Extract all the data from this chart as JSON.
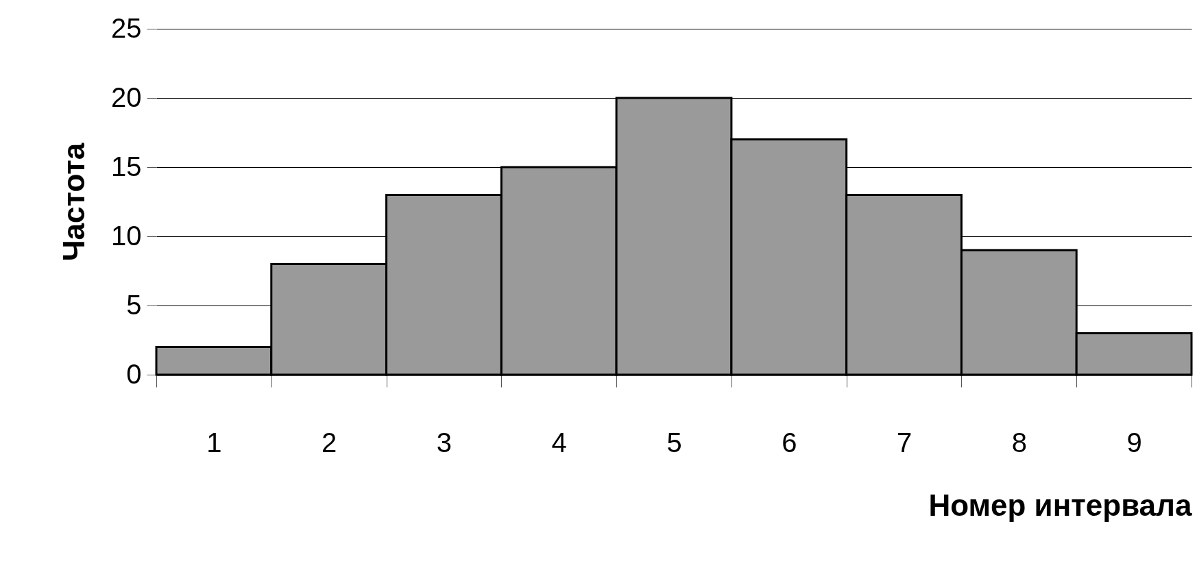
{
  "chart_data": {
    "type": "bar",
    "xlabel": "Номер интервала",
    "ylabel": "Частота",
    "categories": [
      "1",
      "2",
      "3",
      "4",
      "5",
      "6",
      "7",
      "8",
      "9"
    ],
    "values": [
      2,
      8,
      13,
      15,
      20,
      17,
      13,
      9,
      3
    ],
    "color": "#9a9a9a",
    "ylim": [
      0,
      25
    ],
    "yticks": [
      0,
      5,
      10,
      15,
      20,
      25
    ],
    "grid": "y"
  }
}
